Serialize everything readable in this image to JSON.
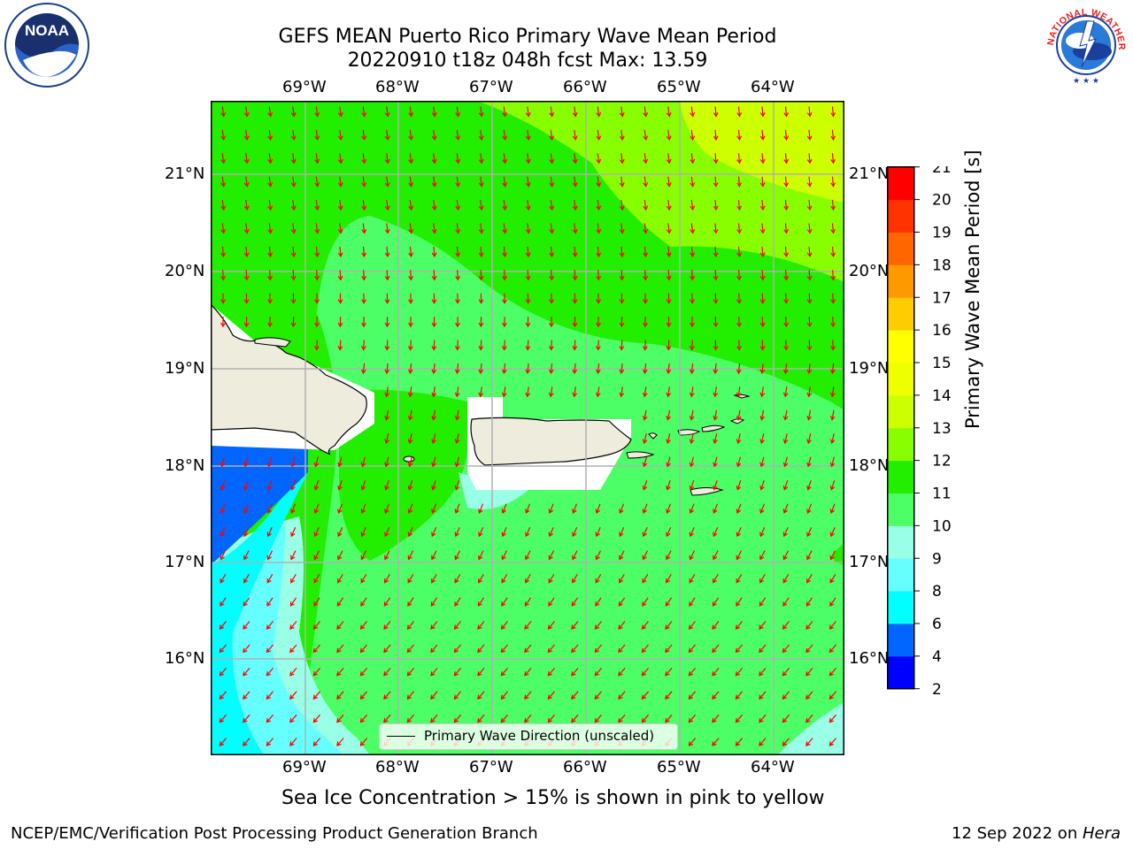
{
  "header": {
    "title_line1": "GEFS MEAN Puerto Rico Primary Wave Mean Period",
    "title_line2": "20220910 t18z 048h fcst   Max: 13.59"
  },
  "axes": {
    "lon_labels": [
      "69°W",
      "68°W",
      "67°W",
      "66°W",
      "65°W",
      "64°W"
    ],
    "lat_labels": [
      "21°N",
      "20°N",
      "19°N",
      "18°N",
      "17°N",
      "16°N"
    ]
  },
  "colorbar": {
    "label": "Primary Wave Mean Period [s]",
    "ticks": [
      "2",
      "4",
      "6",
      "8",
      "9",
      "10",
      "11",
      "12",
      "13",
      "14",
      "15",
      "16",
      "17",
      "18",
      "19",
      "20",
      "21"
    ],
    "colors": [
      "#0000ff",
      "#0066ff",
      "#00ffff",
      "#66ffff",
      "#99ffe6",
      "#4dff66",
      "#22ee00",
      "#88ff00",
      "#ccff00",
      "#eeff00",
      "#ffff00",
      "#ffcc00",
      "#ff9900",
      "#ff6600",
      "#ff3300",
      "#ff0000"
    ]
  },
  "legend": {
    "label": "Primary Wave Direction (unscaled)"
  },
  "footer": {
    "note": "Sea Ice Concentration > 15% is shown in pink to yellow",
    "left": "NCEP/EMC/Verification Post Processing Product Generation Branch",
    "right_date": "12 Sep 2022 on ",
    "right_machine": "Hera"
  },
  "logos": {
    "left_text": "NOAA",
    "right_text": "NATIONAL WEATHER SERVICE"
  },
  "colors": {
    "arrow": "#ff0000",
    "land": "#eeecdc",
    "grid": "#b0b0b0"
  }
}
